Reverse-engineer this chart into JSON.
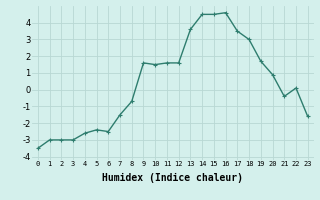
{
  "x": [
    0,
    1,
    2,
    3,
    4,
    5,
    6,
    7,
    8,
    9,
    10,
    11,
    12,
    13,
    14,
    15,
    16,
    17,
    18,
    19,
    20,
    21,
    22,
    23
  ],
  "y": [
    -3.5,
    -3.0,
    -3.0,
    -3.0,
    -2.6,
    -2.4,
    -2.5,
    -1.5,
    -0.7,
    1.6,
    1.5,
    1.6,
    1.6,
    3.6,
    4.5,
    4.5,
    4.6,
    3.5,
    3.0,
    1.7,
    0.9,
    -0.4,
    0.1,
    -1.6
  ],
  "line_color": "#2e7d6e",
  "marker": "+",
  "marker_color": "#2e7d6e",
  "marker_size": 3,
  "line_width": 1.0,
  "xlabel": "Humidex (Indice chaleur)",
  "xlabel_fontsize": 7,
  "bg_color": "#d4f0ec",
  "grid_color": "#b8d8d4",
  "xlim": [
    -0.5,
    23.5
  ],
  "ylim": [
    -4.2,
    5.0
  ],
  "yticks": [
    -4,
    -3,
    -2,
    -1,
    0,
    1,
    2,
    3,
    4
  ],
  "xticks": [
    0,
    1,
    2,
    3,
    4,
    5,
    6,
    7,
    8,
    9,
    10,
    11,
    12,
    13,
    14,
    15,
    16,
    17,
    18,
    19,
    20,
    21,
    22,
    23
  ],
  "ytick_fontsize": 6,
  "xtick_fontsize": 5
}
